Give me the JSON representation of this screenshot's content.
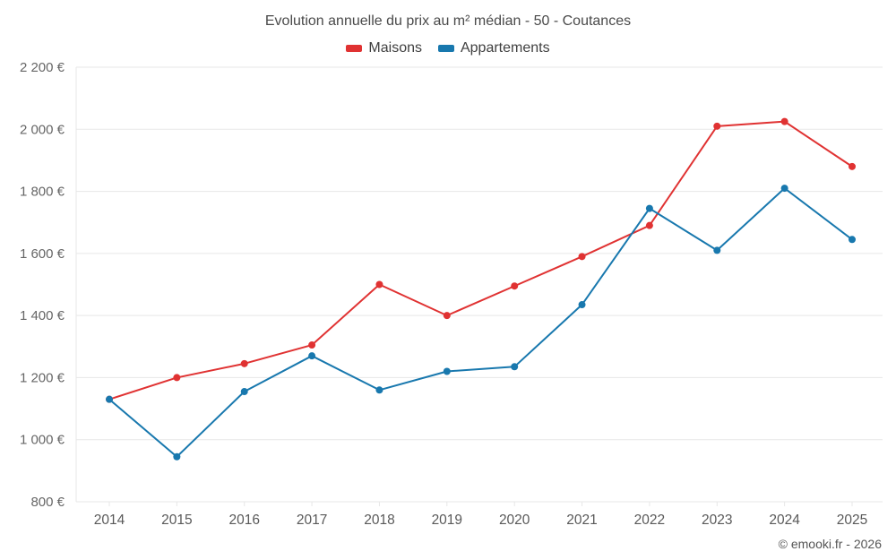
{
  "footer": {
    "credit": "© emooki.fr - 2026"
  },
  "chart_data": {
    "type": "line",
    "title": "Evolution annuelle du prix au m² médian - 50 - Coutances",
    "categories": [
      "2014",
      "2015",
      "2016",
      "2017",
      "2018",
      "2019",
      "2020",
      "2021",
      "2022",
      "2023",
      "2024",
      "2025"
    ],
    "series": [
      {
        "name": "Maisons",
        "color": "#e03232",
        "values": [
          1130,
          1200,
          1245,
          1305,
          1500,
          1400,
          1495,
          1590,
          1690,
          2010,
          2025,
          1880
        ]
      },
      {
        "name": "Appartements",
        "color": "#1878ae",
        "values": [
          1130,
          945,
          1155,
          1270,
          1160,
          1220,
          1235,
          1435,
          1745,
          1610,
          1810,
          1645
        ]
      }
    ],
    "ylabel": "",
    "xlabel": "",
    "ylim": [
      800,
      2200
    ],
    "ytick_step": 200,
    "currency": "€",
    "grid": true,
    "grid_color": "#e7e7e7",
    "axis_label_color": "#666666",
    "x_label_color": "#595959",
    "legend_position": "top"
  }
}
